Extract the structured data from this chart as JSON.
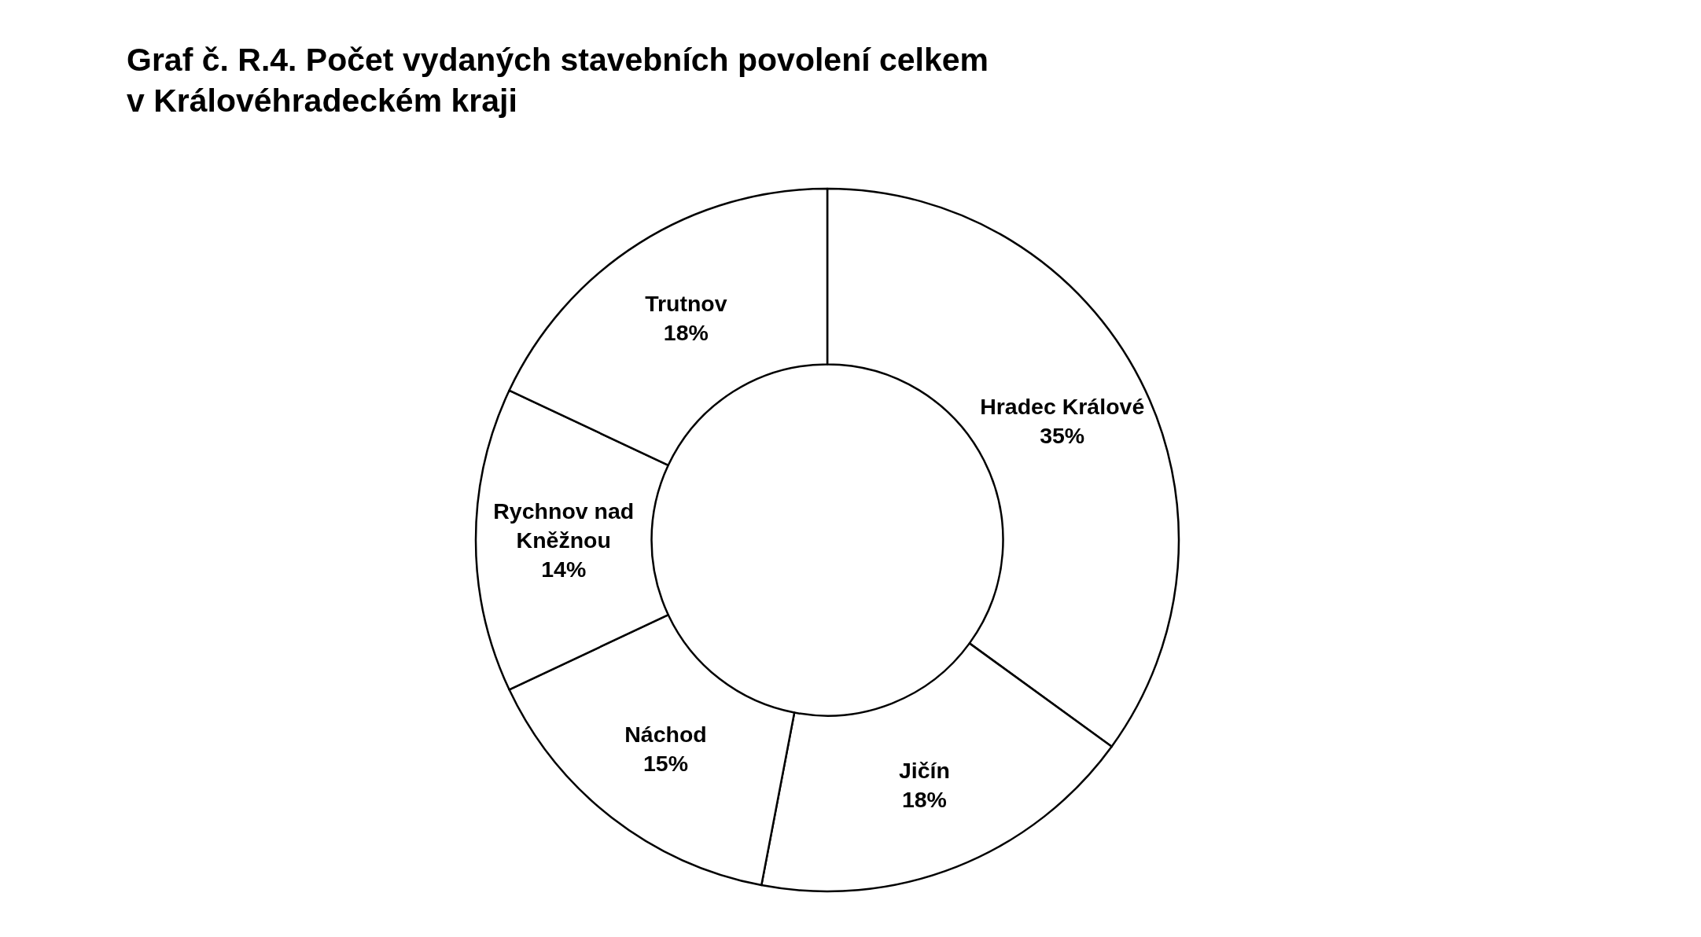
{
  "chart_data": {
    "type": "donut",
    "title": "Graf č. R.4. Počet vydaných stavebních povolení celkem\nv Královéhradeckém kraji",
    "categories": [
      "Hradec Králové",
      "Jičín",
      "Náchod",
      "Rychnov nad Kněžnou",
      "Trutnov"
    ],
    "values": [
      35,
      18,
      15,
      14,
      18
    ],
    "value_labels": [
      "35%",
      "18%",
      "15%",
      "14%",
      "18%"
    ],
    "colors": [
      "#ffffff",
      "#ffffff",
      "#ffffff",
      "#ffffff",
      "#ffffff"
    ]
  }
}
